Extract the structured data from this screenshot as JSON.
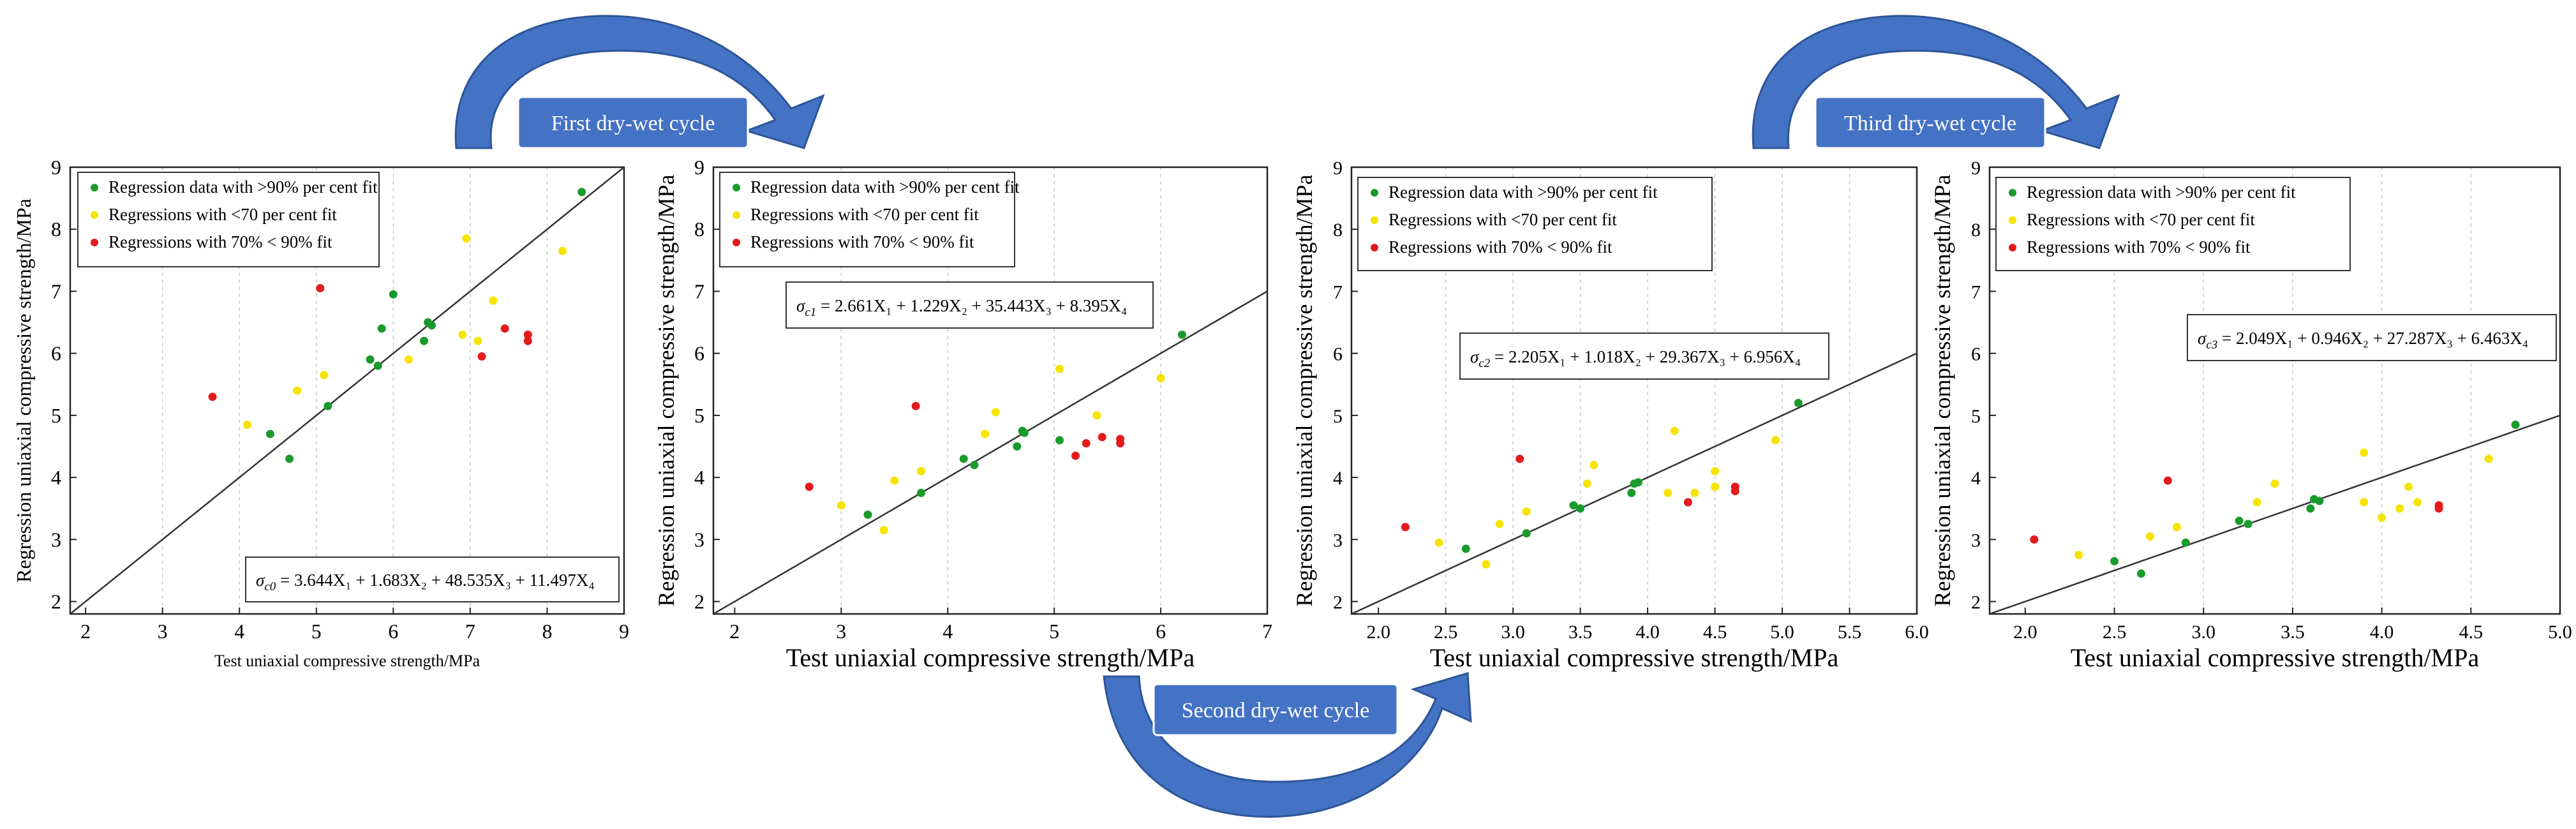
{
  "cycle_labels": {
    "first": "First dry-wet cycle",
    "second": "Second dry-wet cycle",
    "third": "Third dry-wet cycle"
  },
  "colors": {
    "fit90": "#1a9a2c",
    "fit70": "#f5e400",
    "fit70_90": "#e41a1c",
    "arrow": "#4472c4",
    "arrow_dark": "#2e5597",
    "label_box": "#4472c4",
    "line": "#333333"
  },
  "legend": {
    "fit90": "Regression data with >90% per cent fit",
    "fit70": "Regressions with <70 per cent fit",
    "fit70_90": "Regressions with 70% < 90% fit"
  },
  "chart_data": [
    {
      "type": "scatter",
      "id": "p0",
      "xlabel": "Test uniaxial compressive strength/MPa",
      "ylabel": "Regression uniaxial compressive strength/MPa",
      "xlim": [
        1.8,
        9
      ],
      "ylim": [
        1.8,
        9
      ],
      "xticks": [
        2,
        3,
        4,
        5,
        6,
        7,
        8,
        9
      ],
      "yticks": [
        2,
        3,
        4,
        5,
        6,
        7,
        8,
        9
      ],
      "xtick_labels": [
        "2",
        "3",
        "4",
        "5",
        "6",
        "7",
        "8",
        "9"
      ],
      "ytick_labels": [
        "2",
        "3",
        "4",
        "5",
        "6",
        "7",
        "8",
        "9"
      ],
      "equation": {
        "sub": "c0",
        "rhs": " = 3.644X₁ + 1.683X₂ + 48.535X₃ + 11.497X₄"
      },
      "fit_line": [
        [
          1.8,
          1.8
        ],
        [
          9,
          9
        ]
      ],
      "series": [
        {
          "name": "Regression data with >90% per cent fit",
          "key": "fit90",
          "points": [
            [
              4.4,
              4.7
            ],
            [
              4.65,
              4.3
            ],
            [
              5.15,
              5.15
            ],
            [
              5.7,
              5.9
            ],
            [
              5.8,
              5.8
            ],
            [
              5.85,
              6.4
            ],
            [
              6.0,
              6.95
            ],
            [
              6.4,
              6.2
            ],
            [
              6.45,
              6.5
            ],
            [
              6.5,
              6.45
            ],
            [
              8.45,
              8.6
            ]
          ]
        },
        {
          "name": "Regressions with <70 per cent fit",
          "key": "fit70",
          "points": [
            [
              4.1,
              4.85
            ],
            [
              4.75,
              5.4
            ],
            [
              5.1,
              5.65
            ],
            [
              6.2,
              5.9
            ],
            [
              6.9,
              6.3
            ],
            [
              6.95,
              7.85
            ],
            [
              7.1,
              6.2
            ],
            [
              7.3,
              6.85
            ],
            [
              8.2,
              7.65
            ]
          ]
        },
        {
          "name": "Regressions with 70% < 90% fit",
          "key": "fit70_90",
          "points": [
            [
              3.65,
              5.3
            ],
            [
              5.05,
              7.05
            ],
            [
              7.15,
              5.95
            ],
            [
              7.45,
              6.4
            ],
            [
              7.75,
              6.3
            ],
            [
              7.75,
              6.2
            ]
          ]
        }
      ]
    },
    {
      "type": "scatter",
      "id": "p1",
      "xlabel": "Test uniaxial compressive strength/MPa",
      "ylabel": "Regression uniaxial compressive strength/MPa",
      "xlim": [
        1.8,
        7
      ],
      "ylim": [
        1.8,
        9
      ],
      "xticks": [
        2,
        3,
        4,
        5,
        6,
        7
      ],
      "yticks": [
        2,
        3,
        4,
        5,
        6,
        7,
        8,
        9
      ],
      "xtick_labels": [
        "2",
        "3",
        "4",
        "5",
        "6",
        "7"
      ],
      "ytick_labels": [
        "2",
        "3",
        "4",
        "5",
        "6",
        "7",
        "8",
        "9"
      ],
      "equation": {
        "sub": "c1",
        "rhs": " = 2.661X₁ + 1.229X₂ + 35.443X₃ + 8.395X₄"
      },
      "fit_line": [
        [
          1.8,
          1.8
        ],
        [
          7,
          7
        ]
      ],
      "series": [
        {
          "name": "Regression data with >90% per cent fit",
          "key": "fit90",
          "points": [
            [
              3.25,
              3.4
            ],
            [
              3.75,
              3.75
            ],
            [
              4.15,
              4.3
            ],
            [
              4.25,
              4.2
            ],
            [
              4.65,
              4.5
            ],
            [
              4.7,
              4.75
            ],
            [
              4.72,
              4.72
            ],
            [
              5.05,
              4.6
            ],
            [
              6.2,
              6.3
            ]
          ]
        },
        {
          "name": "Regressions with <70 per cent fit",
          "key": "fit70",
          "points": [
            [
              3.0,
              3.55
            ],
            [
              3.4,
              3.15
            ],
            [
              3.5,
              3.95
            ],
            [
              3.75,
              4.1
            ],
            [
              4.35,
              4.7
            ],
            [
              4.45,
              5.05
            ],
            [
              5.05,
              5.75
            ],
            [
              5.4,
              5.0
            ],
            [
              6.0,
              5.6
            ]
          ]
        },
        {
          "name": "Regressions with 70% < 90% fit",
          "key": "fit70_90",
          "points": [
            [
              2.7,
              3.85
            ],
            [
              3.7,
              5.15
            ],
            [
              5.2,
              4.35
            ],
            [
              5.3,
              4.55
            ],
            [
              5.45,
              4.65
            ],
            [
              5.62,
              4.62
            ],
            [
              5.62,
              4.55
            ]
          ]
        }
      ]
    },
    {
      "type": "scatter",
      "id": "p2",
      "xlabel": "Test uniaxial compressive strength/MPa",
      "ylabel": "Regression uniaxial compressive strength/MPa",
      "xlim": [
        1.8,
        6
      ],
      "ylim": [
        1.8,
        9
      ],
      "xticks": [
        2.0,
        2.5,
        3.0,
        3.5,
        4.0,
        4.5,
        5.0,
        5.5,
        6.0
      ],
      "yticks": [
        2,
        3,
        4,
        5,
        6,
        7,
        8,
        9
      ],
      "xtick_labels": [
        "2.0",
        "2.5",
        "3.0",
        "3.5",
        "4.0",
        "4.5",
        "5.0",
        "5.5",
        "6.0"
      ],
      "ytick_labels": [
        "2",
        "3",
        "4",
        "5",
        "6",
        "7",
        "8",
        "9"
      ],
      "equation": {
        "sub": "c2",
        "rhs": " = 2.205X₁ + 1.018X₂ + 29.367X₃ + 6.956X₄"
      },
      "fit_line": [
        [
          1.8,
          1.8
        ],
        [
          6,
          6
        ]
      ],
      "series": [
        {
          "name": "Regression data with >90% per cent fit",
          "key": "fit90",
          "points": [
            [
              2.65,
              2.85
            ],
            [
              3.1,
              3.1
            ],
            [
              3.45,
              3.55
            ],
            [
              3.5,
              3.5
            ],
            [
              3.88,
              3.75
            ],
            [
              3.9,
              3.9
            ],
            [
              3.93,
              3.92
            ],
            [
              5.12,
              5.2
            ]
          ]
        },
        {
          "name": "Regressions with <70 per cent fit",
          "key": "fit70",
          "points": [
            [
              2.45,
              2.95
            ],
            [
              2.8,
              2.6
            ],
            [
              2.9,
              3.25
            ],
            [
              3.1,
              3.45
            ],
            [
              3.55,
              3.9
            ],
            [
              3.6,
              4.2
            ],
            [
              4.15,
              3.75
            ],
            [
              4.2,
              4.75
            ],
            [
              4.35,
              3.75
            ],
            [
              4.5,
              4.1
            ],
            [
              4.5,
              3.85
            ],
            [
              4.95,
              4.6
            ]
          ]
        },
        {
          "name": "Regressions with 70% < 90% fit",
          "key": "fit70_90",
          "points": [
            [
              2.2,
              3.2
            ],
            [
              3.05,
              4.3
            ],
            [
              4.3,
              3.6
            ],
            [
              4.65,
              3.85
            ],
            [
              4.65,
              3.78
            ]
          ]
        }
      ]
    },
    {
      "type": "scatter",
      "id": "p3",
      "xlabel": "Test uniaxial compressive strength/MPa",
      "ylabel": "Regression uniaxial compressive strength/MPa",
      "xlim": [
        1.8,
        5
      ],
      "ylim": [
        1.8,
        9
      ],
      "xticks": [
        2.0,
        2.5,
        3.0,
        3.5,
        4.0,
        4.5,
        5.0
      ],
      "yticks": [
        2,
        3,
        4,
        5,
        6,
        7,
        8,
        9
      ],
      "xtick_labels": [
        "2.0",
        "2.5",
        "3.0",
        "3.5",
        "4.0",
        "4.5",
        "5.0"
      ],
      "ytick_labels": [
        "2",
        "3",
        "4",
        "5",
        "6",
        "7",
        "8",
        "9"
      ],
      "equation": {
        "sub": "c3",
        "rhs": " = 2.049X₁ + 0.946X₂ + 27.287X₃ + 6.463X₄"
      },
      "fit_line": [
        [
          1.8,
          1.8
        ],
        [
          5,
          5
        ]
      ],
      "series": [
        {
          "name": "Regression data with >90% per cent fit",
          "key": "fit90",
          "points": [
            [
              2.5,
              2.65
            ],
            [
              2.65,
              2.45
            ],
            [
              2.9,
              2.95
            ],
            [
              3.2,
              3.3
            ],
            [
              3.25,
              3.25
            ],
            [
              3.6,
              3.5
            ],
            [
              3.62,
              3.65
            ],
            [
              3.65,
              3.62
            ],
            [
              4.75,
              4.85
            ]
          ]
        },
        {
          "name": "Regressions with <70 per cent fit",
          "key": "fit70",
          "points": [
            [
              2.3,
              2.75
            ],
            [
              2.7,
              3.05
            ],
            [
              2.85,
              3.2
            ],
            [
              3.3,
              3.6
            ],
            [
              3.4,
              3.9
            ],
            [
              3.9,
              3.6
            ],
            [
              3.9,
              4.4
            ],
            [
              4.0,
              3.35
            ],
            [
              4.1,
              3.5
            ],
            [
              4.15,
              3.85
            ],
            [
              4.2,
              3.6
            ],
            [
              4.6,
              4.3
            ]
          ]
        },
        {
          "name": "Regressions with 70% < 90% fit",
          "key": "fit70_90",
          "points": [
            [
              2.05,
              3.0
            ],
            [
              2.8,
              3.95
            ],
            [
              4.32,
              3.55
            ],
            [
              4.32,
              3.5
            ]
          ]
        }
      ]
    }
  ]
}
